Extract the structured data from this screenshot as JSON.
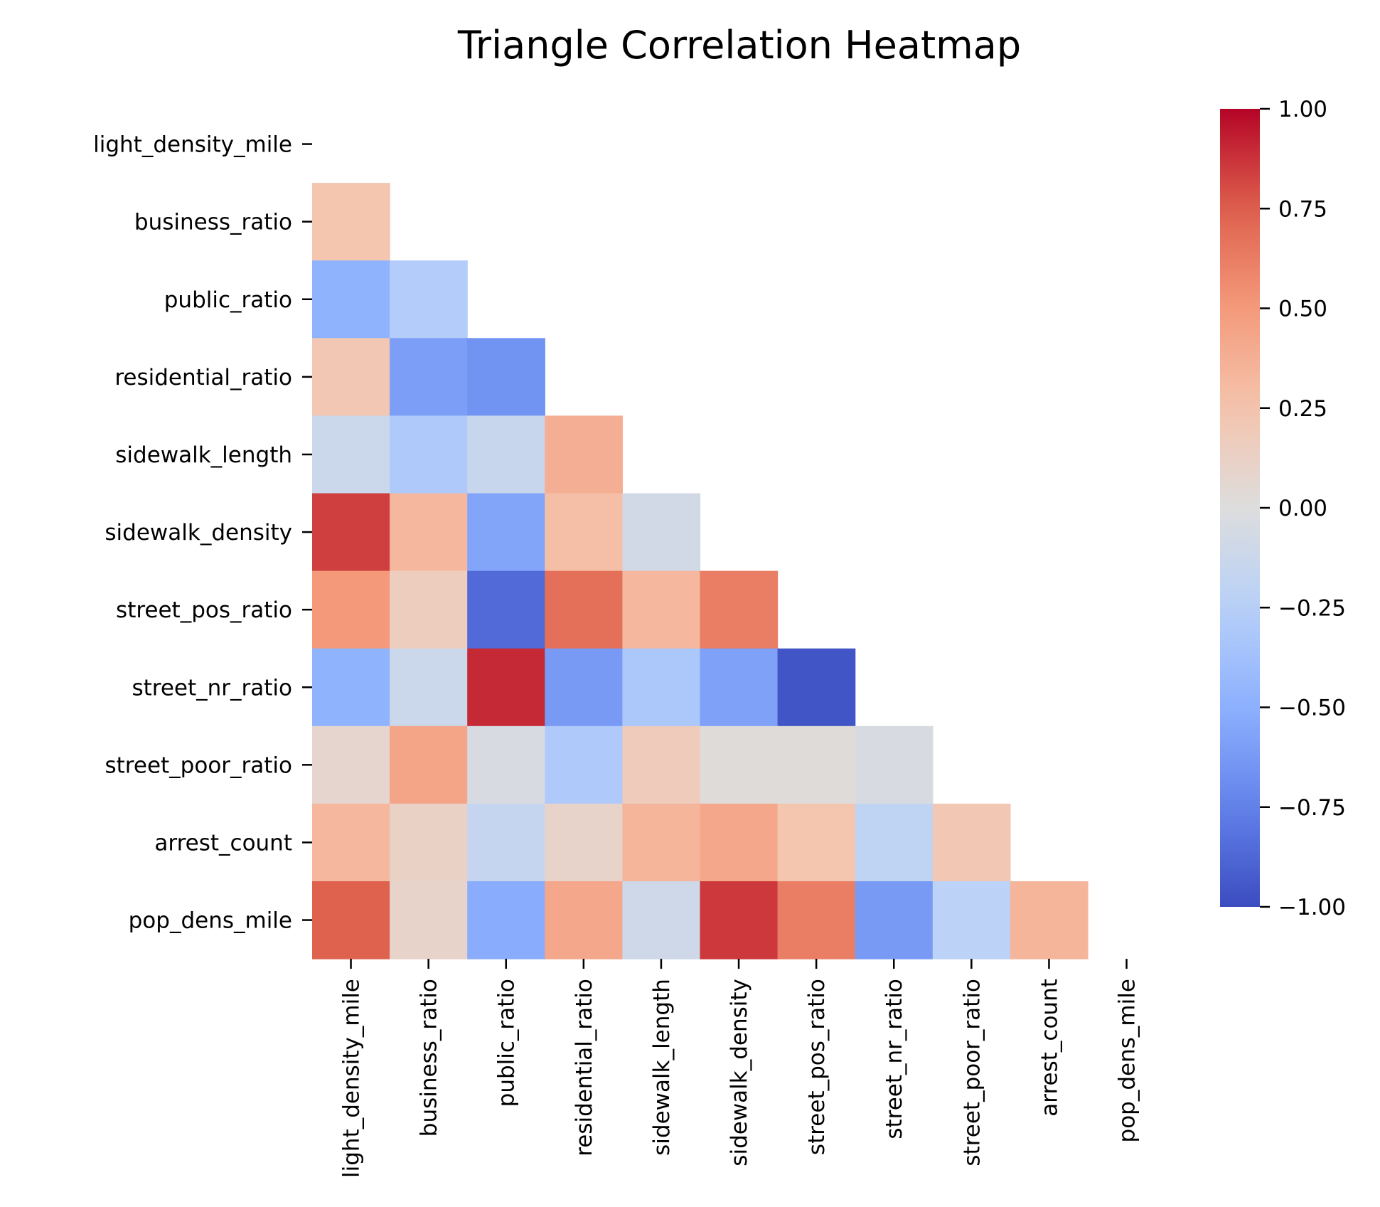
{
  "chart_data": {
    "type": "heatmap",
    "title": "Triangle Correlation Heatmap",
    "xlabel": "",
    "ylabel": "",
    "variables": [
      "light_density_mile",
      "business_ratio",
      "public_ratio",
      "residential_ratio",
      "sidewalk_length",
      "sidewalk_density",
      "street_pos_ratio",
      "street_nr_ratio",
      "street_poor_ratio",
      "arrest_count",
      "pop_dens_mile"
    ],
    "mask": "upper triangle including diagonal",
    "colormap": "coolwarm",
    "vmin": -1.0,
    "vmax": 1.0,
    "colorbar_ticks": [
      "1.00",
      "0.75",
      "0.50",
      "0.25",
      "0.00",
      "−0.25",
      "−0.50",
      "−0.75",
      "−1.00"
    ],
    "colorbar_tick_values": [
      1.0,
      0.75,
      0.5,
      0.25,
      0.0,
      -0.25,
      -0.5,
      -0.75,
      -1.0
    ],
    "values": [
      [
        null,
        null,
        null,
        null,
        null,
        null,
        null,
        null,
        null,
        null,
        null
      ],
      [
        0.24,
        null,
        null,
        null,
        null,
        null,
        null,
        null,
        null,
        null,
        null
      ],
      [
        -0.48,
        -0.28,
        null,
        null,
        null,
        null,
        null,
        null,
        null,
        null,
        null
      ],
      [
        0.22,
        -0.6,
        -0.66,
        null,
        null,
        null,
        null,
        null,
        null,
        null,
        null
      ],
      [
        -0.12,
        -0.3,
        -0.14,
        0.38,
        null,
        null,
        null,
        null,
        null,
        null,
        null
      ],
      [
        0.84,
        0.32,
        -0.56,
        0.28,
        -0.08,
        null,
        null,
        null,
        null,
        null,
        null
      ],
      [
        0.5,
        0.16,
        -0.86,
        0.68,
        0.33,
        0.62,
        null,
        null,
        null,
        null,
        null
      ],
      [
        -0.48,
        -0.12,
        0.9,
        -0.62,
        -0.32,
        -0.58,
        -0.96,
        null,
        null,
        null,
        null
      ],
      [
        0.08,
        0.44,
        -0.04,
        -0.3,
        0.18,
        0.02,
        0.02,
        -0.04,
        null,
        null,
        null
      ],
      [
        0.32,
        0.12,
        -0.16,
        0.1,
        0.34,
        0.42,
        0.24,
        -0.2,
        0.22,
        null,
        null
      ],
      [
        0.74,
        0.1,
        -0.52,
        0.42,
        -0.1,
        0.86,
        0.62,
        -0.62,
        -0.22,
        0.34,
        null
      ]
    ]
  }
}
